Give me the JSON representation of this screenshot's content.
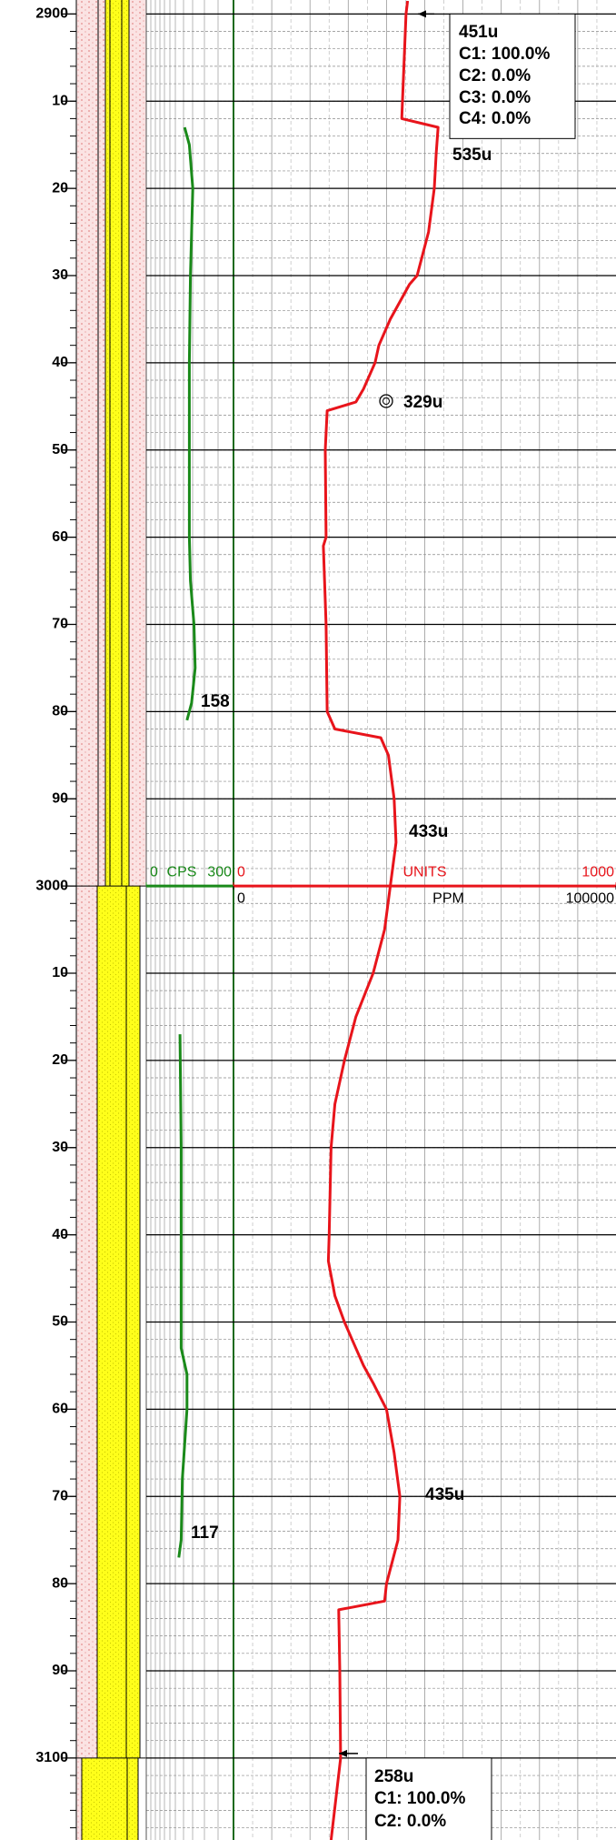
{
  "chart_data": [
    {
      "type": "line",
      "xlim": [
        2898.4,
        3109.4
      ],
      "xticks": [
        2900,
        {
          "value": 2910,
          "label": "10"
        },
        {
          "value": 2920,
          "label": "20"
        },
        {
          "value": 2930,
          "label": "30"
        },
        {
          "value": 2940,
          "label": "40"
        },
        {
          "value": 2950,
          "label": "50"
        },
        {
          "value": 2960,
          "label": "60"
        },
        {
          "value": 2970,
          "label": "70"
        },
        {
          "value": 2980,
          "label": "80"
        },
        {
          "value": 2990,
          "label": "90"
        },
        3000,
        {
          "value": 3010,
          "label": "10"
        },
        {
          "value": 3020,
          "label": "20"
        },
        {
          "value": 3030,
          "label": "30"
        },
        {
          "value": 3040,
          "label": "40"
        },
        {
          "value": 3050,
          "label": "50"
        },
        {
          "value": 3060,
          "label": "60"
        },
        {
          "value": 3070,
          "label": "70"
        },
        {
          "value": 3080,
          "label": "80"
        },
        {
          "value": 3090,
          "label": "90"
        },
        3100
      ],
      "x": [
        2898.5,
        2900,
        2912,
        2913,
        2916,
        2920,
        2925,
        2930,
        2931,
        2935,
        2938,
        2940,
        2943,
        2944.5,
        2945.5,
        2950,
        2960,
        2961,
        2970,
        2980,
        2982,
        2983,
        2985,
        2990,
        2995,
        3000,
        3005,
        3010,
        3015,
        3020,
        3025,
        3030,
        3040,
        3043,
        3047,
        3050,
        3053,
        3055,
        3057,
        3060,
        3065,
        3070,
        3075,
        3080,
        3082,
        3083,
        3090,
        3100,
        3109.4
      ],
      "series": [
        {
          "name": "UNITS",
          "color": "#e8141b",
          "values": [
            455,
            451,
            440,
            535,
            530,
            525,
            510,
            480,
            460,
            410,
            380,
            370,
            340,
            320,
            245,
            240,
            242,
            235,
            242,
            245,
            265,
            385,
            405,
            420,
            425,
            410,
            395,
            365,
            320,
            290,
            265,
            255,
            250,
            248,
            265,
            290,
            320,
            340,
            365,
            400,
            420,
            435,
            430,
            400,
            395,
            275,
            278,
            280,
            255
          ]
        }
      ],
      "ylim": [
        0,
        1000
      ],
      "yticks": [
        0,
        1000
      ],
      "y2label": "PPM",
      "y2lim": [
        0,
        100000
      ],
      "y2ticks": [
        0,
        100000
      ],
      "annotations": [
        "451u",
        "C1: 100.0%",
        "C2: 0.0%",
        "C3: 0.0%",
        "C4: 0.0%",
        "535u",
        "329u",
        "433u",
        "435u",
        "258u",
        "C1: 100.0%",
        "C2: 0.0%"
      ]
    },
    {
      "type": "line",
      "x": [
        2913,
        2915,
        2920,
        2930,
        2940,
        2960,
        2965,
        2970,
        2975,
        2979,
        2981,
        3000,
        3017,
        3030,
        3053,
        3056,
        3060,
        3068,
        3075,
        3077
      ],
      "series": [
        {
          "name": "CPS",
          "color": "#1a8a1a",
          "values": [
            132,
            148,
            160,
            152,
            148,
            148,
            152,
            164,
            168,
            156,
            140,
            null,
            116,
            120,
            120,
            140,
            140,
            124,
            120,
            112
          ]
        }
      ],
      "ylim": [
        0,
        300
      ],
      "yticks": [
        0,
        300
      ],
      "annotations": [
        "158",
        "117"
      ]
    }
  ]
}
